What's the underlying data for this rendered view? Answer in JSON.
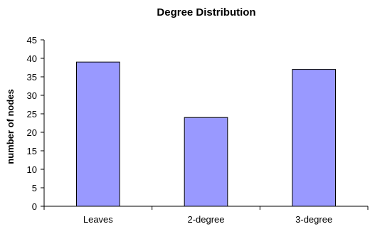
{
  "chart_data": {
    "type": "bar",
    "title": "Degree Distribution",
    "xlabel": "",
    "ylabel": "number of nodes",
    "categories": [
      "Leaves",
      "2-degree",
      "3-degree"
    ],
    "values": [
      39,
      24,
      37
    ],
    "ylim": [
      0,
      45
    ],
    "yticks": [
      0,
      5,
      10,
      15,
      20,
      25,
      30,
      35,
      40,
      45
    ],
    "grid": false,
    "legend": "none",
    "bar_color": "#9999ff",
    "bar_outline": "#000000"
  }
}
